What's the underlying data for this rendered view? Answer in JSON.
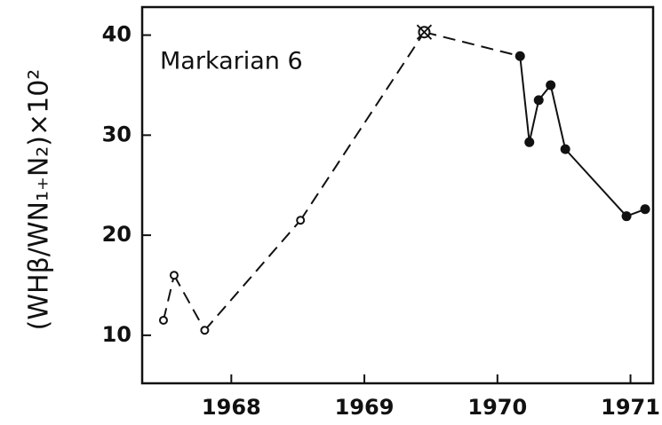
{
  "chart_data": {
    "type": "line",
    "annotation": "Markarian 6",
    "ylabel": "(WHβ/WN₁₊N₂)×10²",
    "series": [
      {
        "color": "#111111",
        "x": [
          1967.49,
          1967.57,
          1967.8,
          1968.52,
          1969.45,
          1970.17,
          1970.24,
          1970.31,
          1970.4,
          1970.51,
          1970.97,
          1971.11
        ],
        "values": [
          11.5,
          16.0,
          10.5,
          21.5,
          40.3,
          37.9,
          29.3,
          33.5,
          35.0,
          28.6,
          21.9,
          22.6
        ],
        "markers": [
          "open",
          "open",
          "open",
          "open",
          "crossed",
          "filled",
          "filled",
          "filled",
          "filled",
          "filled",
          "filled",
          "filled"
        ],
        "segment_styles": [
          "dashed",
          "dashed",
          "dashed",
          "dashed",
          "dashed",
          "solid",
          "solid",
          "solid",
          "solid",
          "solid",
          "solid"
        ]
      }
    ],
    "xlim": [
      1967.33,
      1971.17
    ],
    "xticks": [
      1968,
      1969,
      1970,
      1971
    ],
    "ylim": [
      5.2,
      42.8
    ],
    "yticks": [
      10,
      20,
      30,
      40
    ],
    "grid": false
  }
}
